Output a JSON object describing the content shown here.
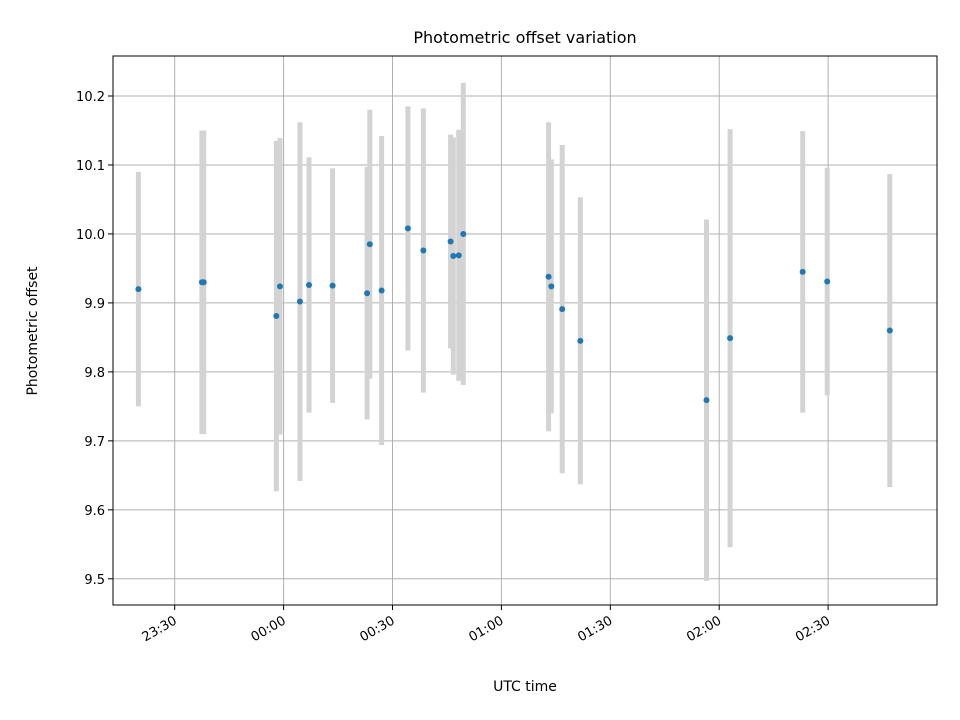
{
  "chart_data": {
    "type": "scatter",
    "title": "Photometric offset variation",
    "xlabel": "UTC time",
    "ylabel": "Photometric offset",
    "x_ticks": [
      "23:30",
      "00:00",
      "00:30",
      "01:00",
      "01:30",
      "02:00",
      "02:30"
    ],
    "y_ticks": [
      "9.5",
      "9.6",
      "9.7",
      "9.8",
      "9.9",
      "10.0",
      "10.1",
      "10.2"
    ],
    "xlim": [
      "23:13",
      "03:00"
    ],
    "ylim": [
      9.462,
      10.258
    ],
    "grid": true,
    "colors": {
      "points": "#1f77b4",
      "error_bars": "#d3d3d3",
      "grid": "#b0b0b0"
    },
    "points": [
      {
        "t": "23:20:00",
        "y": 9.92,
        "err": 0.17
      },
      {
        "t": "23:37:30",
        "y": 9.93,
        "err": 0.22
      },
      {
        "t": "23:38:00",
        "y": 9.93,
        "err": 0.22
      },
      {
        "t": "23:58:00",
        "y": 9.881,
        "err": 0.254
      },
      {
        "t": "23:59:00",
        "y": 9.924,
        "err": 0.215
      },
      {
        "t": "00:04:30",
        "y": 9.902,
        "err": 0.26
      },
      {
        "t": "00:07:00",
        "y": 9.926,
        "err": 0.185
      },
      {
        "t": "00:13:30",
        "y": 9.925,
        "err": 0.17
      },
      {
        "t": "00:23:00",
        "y": 9.914,
        "err": 0.183
      },
      {
        "t": "00:23:45",
        "y": 9.985,
        "err": 0.195
      },
      {
        "t": "00:27:00",
        "y": 9.918,
        "err": 0.224
      },
      {
        "t": "00:34:15",
        "y": 10.008,
        "err": 0.177
      },
      {
        "t": "00:38:30",
        "y": 9.976,
        "err": 0.206
      },
      {
        "t": "00:46:00",
        "y": 9.989,
        "err": 0.155
      },
      {
        "t": "00:46:45",
        "y": 9.968,
        "err": 0.172
      },
      {
        "t": "00:48:15",
        "y": 9.969,
        "err": 0.182
      },
      {
        "t": "00:49:30",
        "y": 10.0,
        "err": 0.219
      },
      {
        "t": "01:13:00",
        "y": 9.938,
        "err": 0.224
      },
      {
        "t": "01:13:45",
        "y": 9.924,
        "err": 0.184
      },
      {
        "t": "01:16:45",
        "y": 9.891,
        "err": 0.238
      },
      {
        "t": "01:21:45",
        "y": 9.845,
        "err": 0.208
      },
      {
        "t": "01:56:30",
        "y": 9.759,
        "err": 0.262
      },
      {
        "t": "02:03:00",
        "y": 9.849,
        "err": 0.303
      },
      {
        "t": "02:23:00",
        "y": 9.945,
        "err": 0.204
      },
      {
        "t": "02:29:45",
        "y": 9.931,
        "err": 0.165
      },
      {
        "t": "02:47:00",
        "y": 9.86,
        "err": 0.227
      }
    ]
  }
}
